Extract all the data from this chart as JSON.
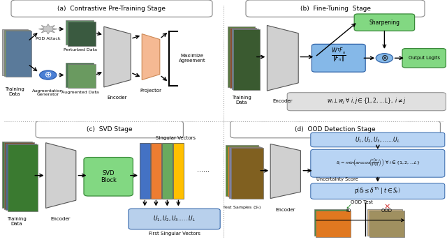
{
  "panel_a_title": "(a)  Contrastive Pre-Training Stage",
  "panel_b_title": "(b)  Fine-Tuning  Stage",
  "panel_c_title": "(c)  SVD Stage",
  "panel_d_title": "(d)  OOD Detection Stage",
  "bg_color": "#ffffff",
  "encoder_color": "#d0d0d0",
  "projector_color": "#f5b993",
  "svd_box_color": "#82d882",
  "blue_box_color": "#85b8e8",
  "green_box_color": "#82d882",
  "singular_colors": [
    "#4472c4",
    "#ed7d31",
    "#6aaa5e",
    "#ffc000"
  ],
  "first_sv_box_color": "#b8d0ec",
  "title_border": "#888888",
  "arrow_color": "#000000",
  "text_color": "#000000",
  "gray_annot_color": "#d8d8d8",
  "divider_color": "#aaaaaa",
  "img_toucan_green": "#6a9a5a",
  "img_brown": "#8b6040",
  "img_blue_sky": "#8ab0c8",
  "img_dark": "#404040",
  "img_castle": "#c8b090",
  "img_orange": "#e0702a"
}
